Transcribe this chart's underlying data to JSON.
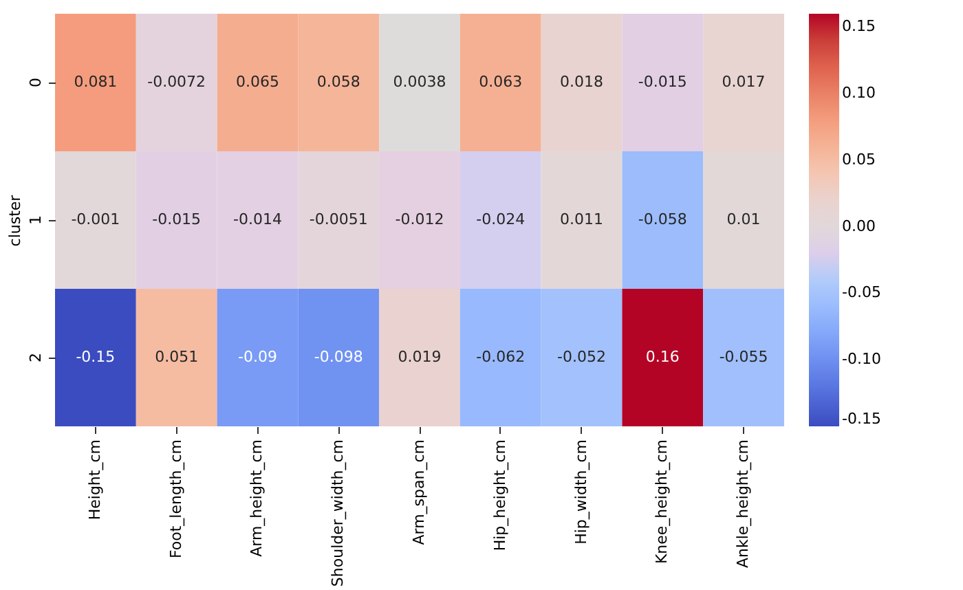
{
  "chart_data": {
    "type": "heatmap",
    "ylabel": "cluster",
    "categories": [
      "Height_cm",
      "Foot_length_cm",
      "Arm_height_cm",
      "Shoulder_width_cm",
      "Arm_span_cm",
      "Hip_height_cm",
      "Hip_width_cm",
      "Knee_height_cm",
      "Ankle_height_cm"
    ],
    "y_categories": [
      "0",
      "1",
      "2"
    ],
    "cells": [
      [
        0.081,
        -0.0072,
        0.065,
        0.058,
        0.0038,
        0.063,
        0.018,
        -0.015,
        0.017
      ],
      [
        -0.001,
        -0.015,
        -0.014,
        -0.0051,
        -0.012,
        -0.024,
        0.011,
        -0.058,
        0.01
      ],
      [
        -0.15,
        0.051,
        -0.09,
        -0.098,
        0.019,
        -0.062,
        -0.052,
        0.16,
        -0.055
      ]
    ],
    "clim": [
      -0.15,
      0.16
    ],
    "cticks": [
      -0.15,
      {
        "value": -0.1,
        "label": "-0.10"
      },
      -0.05,
      {
        "value": 0,
        "label": "0.00"
      },
      0.05,
      {
        "value": 0.1,
        "label": "0.10"
      },
      0.15
    ],
    "data_labels": true
  }
}
